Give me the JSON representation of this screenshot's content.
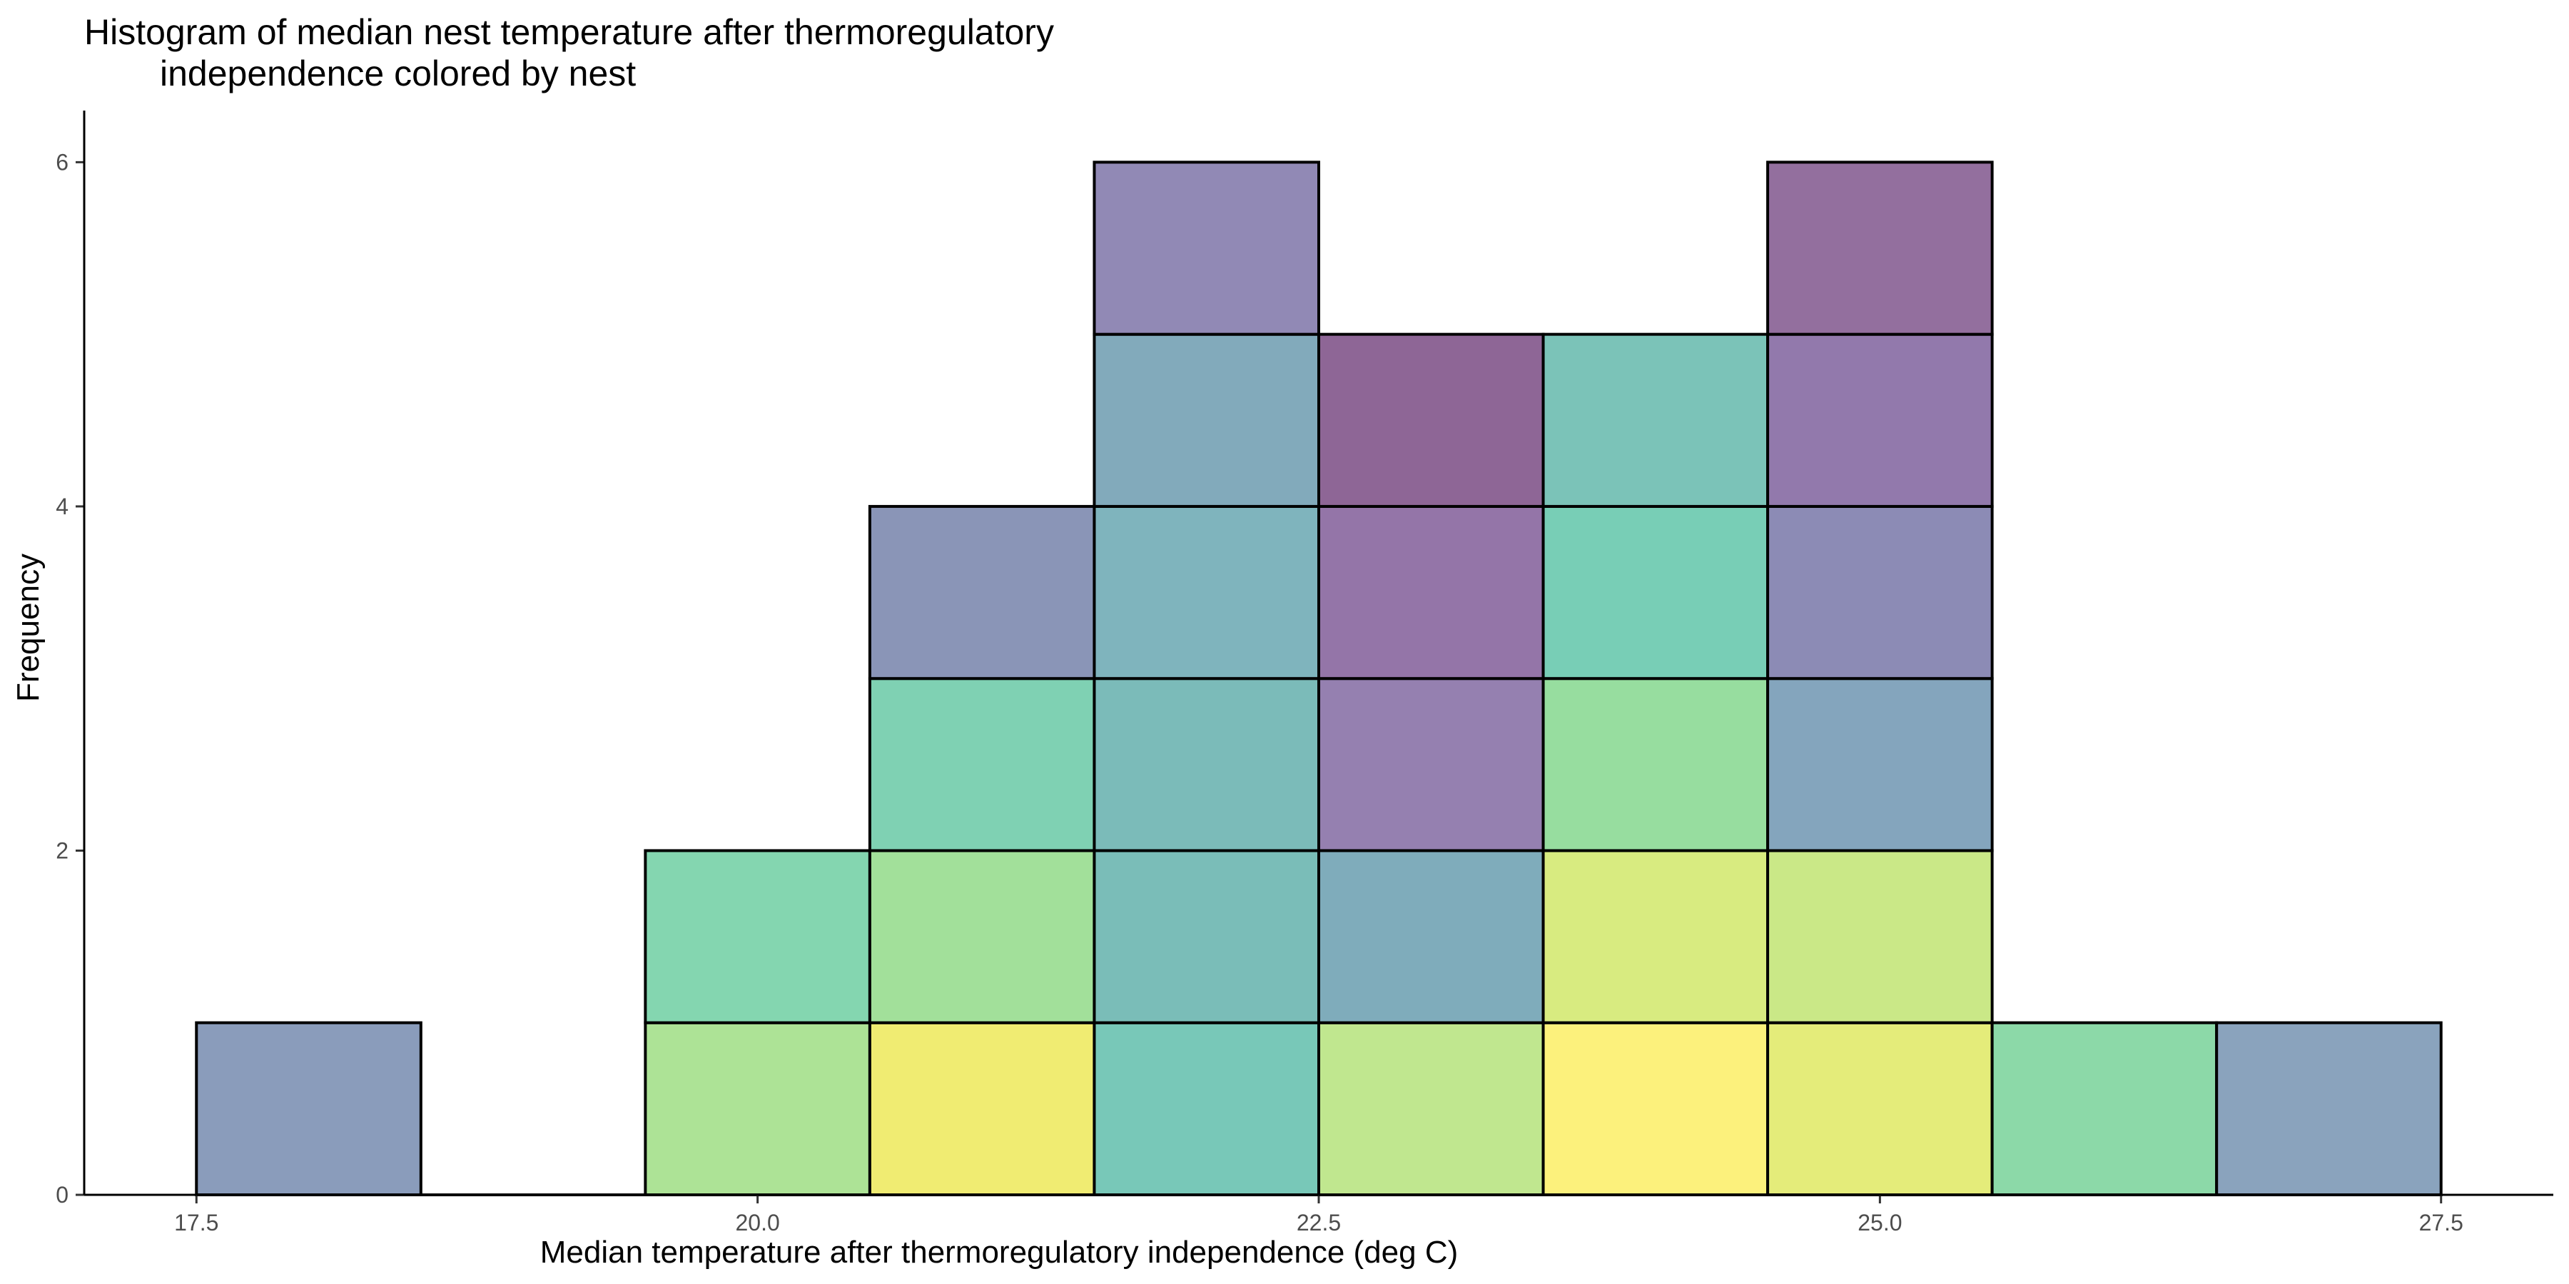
{
  "chart_data": {
    "type": "bar",
    "title_lines": [
      "Histogram of median nest temperature after thermoregulatory",
      "independence colored by nest"
    ],
    "xlabel": "Median temperature after thermoregulatory independence (deg C)",
    "ylabel": "Frequency",
    "xlim": [
      17.0,
      28.0
    ],
    "ylim": [
      0,
      6.3
    ],
    "x_ticks": [
      17.5,
      20.0,
      22.5,
      25.0,
      27.5
    ],
    "x_tick_labels": [
      "17.5",
      "20.0",
      "22.5",
      "25.0",
      "27.5"
    ],
    "y_ticks": [
      0,
      2,
      4,
      6
    ],
    "y_tick_labels": [
      "0",
      "2",
      "4",
      "6"
    ],
    "bin_width": 1,
    "stacked": true,
    "legend": "none",
    "bins": [
      {
        "x": 18,
        "count": 1,
        "colors": [
          "#8a9cbb"
        ]
      },
      {
        "x": 19,
        "count": 0,
        "colors": []
      },
      {
        "x": 20,
        "count": 2,
        "colors": [
          "#ade396",
          "#84d6b0"
        ]
      },
      {
        "x": 21,
        "count": 4,
        "colors": [
          "#f0ec72",
          "#a2e09a",
          "#7fd1b3",
          "#8a95b7"
        ]
      },
      {
        "x": 22,
        "count": 6,
        "colors": [
          "#78c8b8",
          "#7abdb8",
          "#7bbbb9",
          "#7fb4bd",
          "#82aabb",
          "#9189b5"
        ]
      },
      {
        "x": 23,
        "count": 5,
        "colors": [
          "#c0e78f",
          "#7facbb",
          "#9580b0",
          "#9475a8",
          "#8e6696"
        ]
      },
      {
        "x": 24,
        "count": 5,
        "colors": [
          "#fcf17c",
          "#d8eb80",
          "#97dd9f",
          "#78ceb6",
          "#7bc3b8"
        ]
      },
      {
        "x": 25,
        "count": 6,
        "colors": [
          "#e4ec7a",
          "#cae887",
          "#84a5bd",
          "#8c8bb5",
          "#9279ac",
          "#936f9e"
        ]
      },
      {
        "x": 26,
        "count": 1,
        "colors": [
          "#8cd9a8"
        ]
      },
      {
        "x": 27,
        "count": 1,
        "colors": [
          "#8aa3bd"
        ]
      }
    ]
  }
}
